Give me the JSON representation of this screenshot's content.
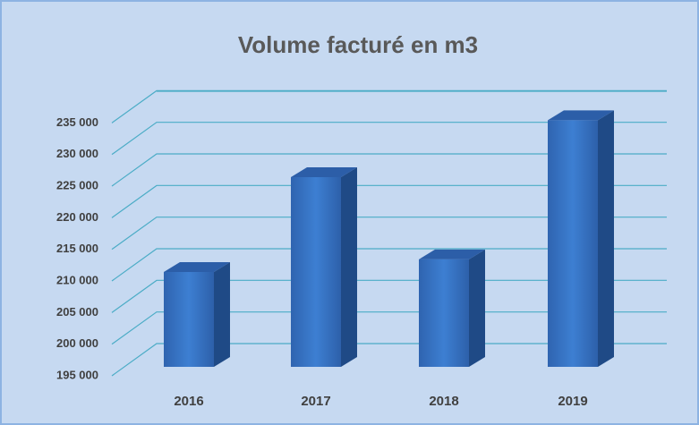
{
  "chart_data": {
    "type": "bar3d",
    "title": "Volume facturé en m3",
    "categories": [
      "2016",
      "2017",
      "2018",
      "2019"
    ],
    "values": [
      210000,
      225000,
      212000,
      234000
    ],
    "color": "#3a78c9",
    "ylim": [
      195000,
      240000
    ],
    "yticks": [
      {
        "value": 195000,
        "label": "195 000"
      },
      {
        "value": 200000,
        "label": "200 000"
      },
      {
        "value": 205000,
        "label": "205 000"
      },
      {
        "value": 210000,
        "label": "210 000"
      },
      {
        "value": 215000,
        "label": "215 000"
      },
      {
        "value": 220000,
        "label": "220 000"
      },
      {
        "value": 225000,
        "label": "225 000"
      },
      {
        "value": 230000,
        "label": "230 000"
      },
      {
        "value": 235000,
        "label": "235 000"
      }
    ],
    "grid": true
  }
}
